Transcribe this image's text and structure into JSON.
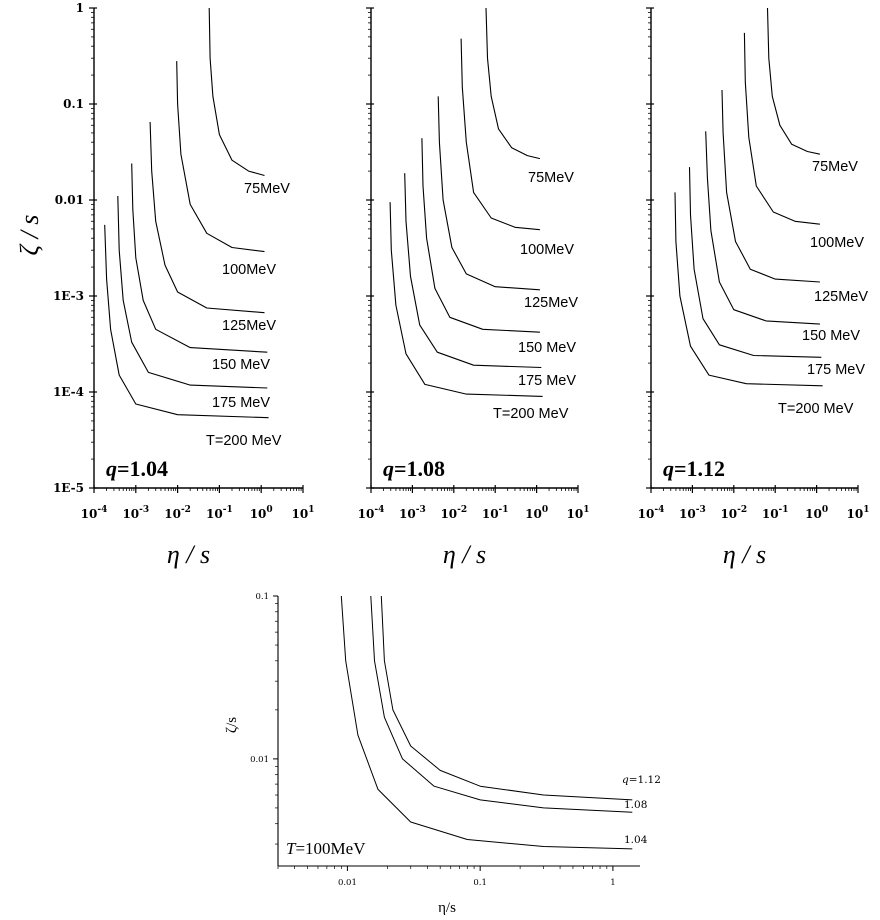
{
  "figure": {
    "top_ylabel": "ζ / s",
    "top_xlabel": "η / s",
    "top_xticks": [
      {
        "base": "10",
        "exp": "-4"
      },
      {
        "base": "10",
        "exp": "-3"
      },
      {
        "base": "10",
        "exp": "-2"
      },
      {
        "base": "10",
        "exp": "-1"
      },
      {
        "base": "10",
        "exp": "0"
      },
      {
        "base": "10",
        "exp": "1"
      }
    ],
    "top_yticks": [
      "1E-5",
      "1E-4",
      "1E-3",
      "0.01",
      "0.1",
      "1"
    ],
    "bottom_ylabel": "ζ/s",
    "bottom_xlabel": "η/s",
    "bottom_xticks": [
      "0.01",
      "0.1",
      "1"
    ],
    "bottom_yticks": [
      "0.01",
      "0.1"
    ],
    "bottom_temp_label": {
      "T": "T",
      "value": "=100MeV"
    }
  },
  "chart_data": [
    {
      "type": "line",
      "panel_label": {
        "q": "q",
        "value": "=1.04"
      },
      "xscale": "log",
      "yscale": "log",
      "xlim": [
        0.0001,
        10
      ],
      "ylim": [
        1e-05,
        1
      ],
      "series": [
        {
          "name": "75MeV",
          "x": [
            0.057,
            0.06,
            0.07,
            0.1,
            0.2,
            0.5,
            1.2
          ],
          "y": [
            1,
            0.3,
            0.12,
            0.048,
            0.026,
            0.02,
            0.018
          ]
        },
        {
          "name": "100MeV",
          "x": [
            0.0095,
            0.01,
            0.012,
            0.02,
            0.05,
            0.2,
            1.2
          ],
          "y": [
            0.28,
            0.1,
            0.03,
            0.009,
            0.0045,
            0.0032,
            0.0029
          ]
        },
        {
          "name": "125MeV",
          "x": [
            0.0022,
            0.0024,
            0.003,
            0.005,
            0.01,
            0.05,
            1.2
          ],
          "y": [
            0.065,
            0.02,
            0.006,
            0.0021,
            0.0011,
            0.00075,
            0.00067
          ]
        },
        {
          "name": "150 MeV",
          "x": [
            0.0008,
            0.00085,
            0.001,
            0.0015,
            0.003,
            0.02,
            1.4
          ],
          "y": [
            0.024,
            0.008,
            0.0025,
            0.0009,
            0.00045,
            0.00029,
            0.00026
          ]
        },
        {
          "name": "175 MeV",
          "x": [
            0.00037,
            0.0004,
            0.0005,
            0.0008,
            0.002,
            0.02,
            1.4
          ],
          "y": [
            0.011,
            0.003,
            0.0009,
            0.00033,
            0.00016,
            0.000118,
            0.00011
          ]
        },
        {
          "name": "T=200 MeV",
          "x": [
            0.00018,
            0.0002,
            0.00025,
            0.0004,
            0.001,
            0.01,
            1.5
          ],
          "y": [
            0.0055,
            0.0015,
            0.00045,
            0.00015,
            7.5e-05,
            5.8e-05,
            5.4e-05
          ]
        }
      ]
    },
    {
      "type": "line",
      "panel_label": {
        "q": "q",
        "value": "=1.08"
      },
      "xscale": "log",
      "yscale": "log",
      "xlim": [
        0.0001,
        10
      ],
      "ylim": [
        1e-05,
        1
      ],
      "series": [
        {
          "name": "75MeV",
          "x": [
            0.06,
            0.065,
            0.08,
            0.12,
            0.25,
            0.6,
            1.2
          ],
          "y": [
            1,
            0.3,
            0.12,
            0.055,
            0.035,
            0.029,
            0.027
          ]
        },
        {
          "name": "100MeV",
          "x": [
            0.015,
            0.016,
            0.02,
            0.03,
            0.08,
            0.3,
            1.2
          ],
          "y": [
            0.48,
            0.15,
            0.04,
            0.012,
            0.0065,
            0.0052,
            0.0049
          ]
        },
        {
          "name": "125MeV",
          "x": [
            0.0042,
            0.0045,
            0.0055,
            0.009,
            0.02,
            0.1,
            1.2
          ],
          "y": [
            0.12,
            0.04,
            0.01,
            0.0032,
            0.0017,
            0.00125,
            0.00116
          ]
        },
        {
          "name": "150 MeV",
          "x": [
            0.0017,
            0.0018,
            0.0022,
            0.0035,
            0.008,
            0.05,
            1.2
          ],
          "y": [
            0.044,
            0.014,
            0.004,
            0.0012,
            0.0006,
            0.00045,
            0.00042
          ]
        },
        {
          "name": "175 MeV",
          "x": [
            0.00065,
            0.0007,
            0.0009,
            0.0015,
            0.004,
            0.03,
            1.3
          ],
          "y": [
            0.019,
            0.006,
            0.0016,
            0.0005,
            0.00026,
            0.00019,
            0.00018
          ]
        },
        {
          "name": "T=200 MeV",
          "x": [
            0.00029,
            0.00031,
            0.0004,
            0.0007,
            0.002,
            0.02,
            1.4
          ],
          "y": [
            0.0095,
            0.003,
            0.0008,
            0.00025,
            0.00012,
            9.5e-05,
            9e-05
          ]
        }
      ]
    },
    {
      "type": "line",
      "panel_label": {
        "q": "q",
        "value": "=1.12"
      },
      "xscale": "log",
      "yscale": "log",
      "xlim": [
        0.0001,
        10
      ],
      "ylim": [
        1e-05,
        1
      ],
      "series": [
        {
          "name": "75MeV",
          "x": [
            0.065,
            0.07,
            0.085,
            0.13,
            0.25,
            0.6,
            1.2
          ],
          "y": [
            1,
            0.3,
            0.12,
            0.06,
            0.038,
            0.032,
            0.03
          ]
        },
        {
          "name": "100MeV",
          "x": [
            0.018,
            0.019,
            0.023,
            0.035,
            0.09,
            0.3,
            1.2
          ],
          "y": [
            0.55,
            0.17,
            0.045,
            0.014,
            0.0075,
            0.006,
            0.0056
          ]
        },
        {
          "name": "125MeV",
          "x": [
            0.0052,
            0.0055,
            0.0067,
            0.011,
            0.025,
            0.1,
            1.2
          ],
          "y": [
            0.14,
            0.05,
            0.012,
            0.0037,
            0.0019,
            0.0015,
            0.0014
          ]
        },
        {
          "name": "150 MeV",
          "x": [
            0.0021,
            0.0023,
            0.0028,
            0.0045,
            0.01,
            0.06,
            1.2
          ],
          "y": [
            0.052,
            0.017,
            0.0048,
            0.0014,
            0.00072,
            0.00055,
            0.00051
          ]
        },
        {
          "name": "175 MeV",
          "x": [
            0.00085,
            0.0009,
            0.0011,
            0.0018,
            0.0045,
            0.03,
            1.3
          ],
          "y": [
            0.022,
            0.007,
            0.0019,
            0.00058,
            0.00031,
            0.00024,
            0.00023
          ]
        },
        {
          "name": "T=200 MeV",
          "x": [
            0.00038,
            0.0004,
            0.0005,
            0.0009,
            0.0025,
            0.02,
            1.4
          ],
          "y": [
            0.012,
            0.0037,
            0.001,
            0.0003,
            0.00015,
            0.000122,
            0.000116
          ]
        }
      ]
    },
    {
      "type": "line",
      "xscale": "log",
      "yscale": "log",
      "xlim": [
        0.003,
        1.6
      ],
      "ylim": [
        0.0022,
        0.1
      ],
      "series": [
        {
          "name": "q=1.12",
          "label_q": "q",
          "label_value": "=1.12",
          "x": [
            0.018,
            0.019,
            0.022,
            0.03,
            0.05,
            0.1,
            0.3,
            1.4
          ],
          "y": [
            0.1,
            0.04,
            0.02,
            0.012,
            0.0085,
            0.0068,
            0.006,
            0.0056
          ]
        },
        {
          "name": "1.08",
          "x": [
            0.015,
            0.016,
            0.019,
            0.026,
            0.045,
            0.1,
            0.3,
            1.4
          ],
          "y": [
            0.1,
            0.04,
            0.018,
            0.01,
            0.0068,
            0.0056,
            0.005,
            0.0047
          ]
        },
        {
          "name": "1.04",
          "x": [
            0.009,
            0.0097,
            0.012,
            0.017,
            0.03,
            0.08,
            0.3,
            1.4
          ],
          "y": [
            0.1,
            0.04,
            0.014,
            0.0065,
            0.0041,
            0.0032,
            0.0029,
            0.0028
          ]
        }
      ]
    }
  ]
}
